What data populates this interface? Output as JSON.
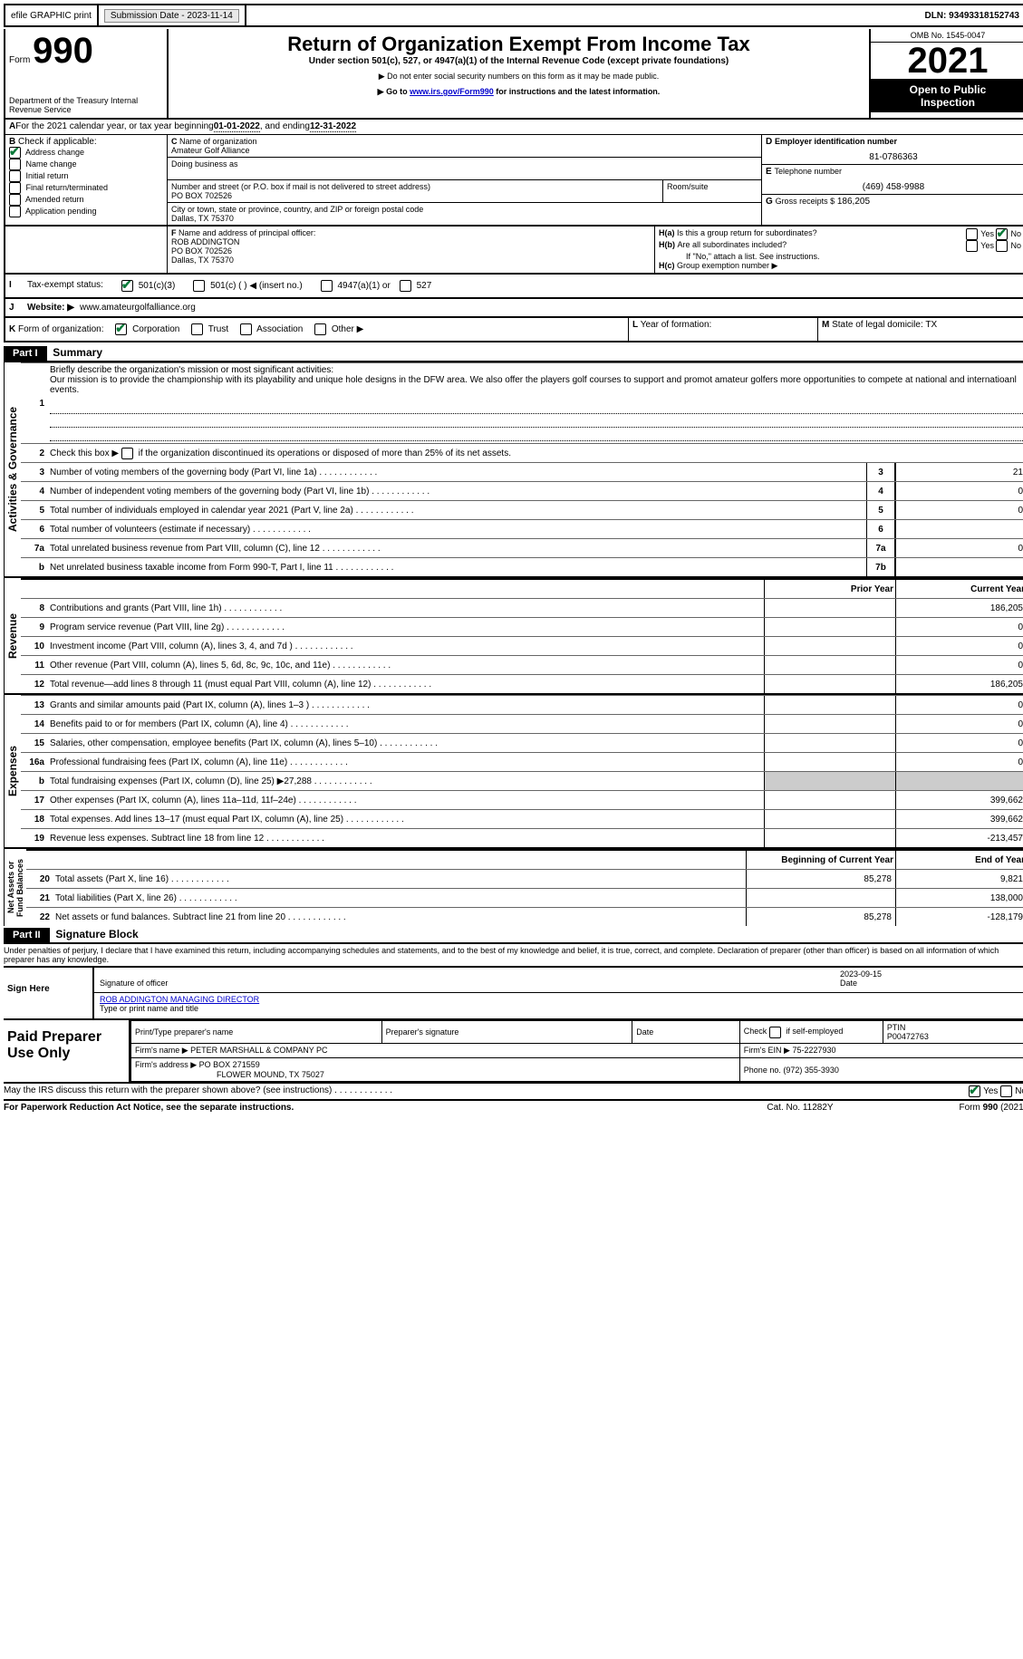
{
  "top": {
    "efile": "efile GRAPHIC print",
    "subdate_label": "Submission Date - 2023-11-14",
    "dln_label": "DLN: 93493318152743"
  },
  "header": {
    "form_label": "Form",
    "form_num": "990",
    "dept": "Department of the Treasury\nInternal Revenue Service",
    "title": "Return of Organization Exempt From Income Tax",
    "subtitle": "Under section 501(c), 527, or 4947(a)(1) of the Internal Revenue Code (except private foundations)",
    "note1": "Do not enter social security numbers on this form as it may be made public.",
    "note2_pre": "Go to ",
    "note2_link": "www.irs.gov/Form990",
    "note2_post": " for instructions and the latest information.",
    "omb": "OMB No. 1545-0047",
    "year": "2021",
    "inspect": "Open to Public\nInspection"
  },
  "periodA": {
    "label": "For the 2021 calendar year, or tax year beginning ",
    "begin": "01-01-2022",
    "mid": " , and ending ",
    "end": "12-31-2022"
  },
  "B": {
    "label": "Check if applicable:",
    "items": [
      "Address change",
      "Name change",
      "Initial return",
      "Final return/terminated",
      "Amended return",
      "Application pending"
    ],
    "checked": [
      true,
      false,
      false,
      false,
      false,
      false
    ]
  },
  "C": {
    "name_label": "Name of organization",
    "name": "Amateur Golf Alliance",
    "dba_label": "Doing business as",
    "addr_label": "Number and street (or P.O. box if mail is not delivered to street address)",
    "room_label": "Room/suite",
    "addr": "PO BOX 702526",
    "city_label": "City or town, state or province, country, and ZIP or foreign postal code",
    "city": "Dallas, TX  75370"
  },
  "D": {
    "label": "Employer identification number",
    "val": "81-0786363"
  },
  "E": {
    "label": "Telephone number",
    "val": "(469) 458-9988"
  },
  "G": {
    "label": "Gross receipts $",
    "val": "186,205"
  },
  "F": {
    "label": "Name and address of principal officer:",
    "name": "ROB ADDINGTON",
    "addr1": "PO BOX 702526",
    "addr2": "Dallas, TX  75370"
  },
  "H": {
    "a": "Is this a group return for subordinates?",
    "b": "Are all subordinates included?",
    "b_note": "If \"No,\" attach a list. See instructions.",
    "c": "Group exemption number ▶",
    "yes": "Yes",
    "no": "No"
  },
  "I": {
    "label": "Tax-exempt status:",
    "opts": [
      "501(c)(3)",
      "501(c) (  ) ◀ (insert no.)",
      "4947(a)(1) or",
      "527"
    ]
  },
  "J": {
    "label": "Website: ▶",
    "val": "www.amateurgolfalliance.org"
  },
  "K": {
    "label": "Form of organization:",
    "opts": [
      "Corporation",
      "Trust",
      "Association",
      "Other ▶"
    ]
  },
  "L": {
    "label": "Year of formation:"
  },
  "M": {
    "label": "State of legal domicile:",
    "val": "TX"
  },
  "part1": {
    "header": "Part I",
    "title": "Summary",
    "line1_label": "Briefly describe the organization's mission or most significant activities:",
    "line1_text": "Our mission is to provide the championship with its playability and unique hole designs in the DFW area. We also offer the players golf courses to support and promot amateur golfers more opportunities to compete at national and internatioanl events.",
    "line2": "Check this box ▶        if the organization discontinued its operations or disposed of more than 25% of its net assets.",
    "lines_ag": [
      {
        "n": "3",
        "t": "Number of voting members of the governing body (Part VI, line 1a)",
        "box": "3",
        "v": "21"
      },
      {
        "n": "4",
        "t": "Number of independent voting members of the governing body (Part VI, line 1b)",
        "box": "4",
        "v": "0"
      },
      {
        "n": "5",
        "t": "Total number of individuals employed in calendar year 2021 (Part V, line 2a)",
        "box": "5",
        "v": "0"
      },
      {
        "n": "6",
        "t": "Total number of volunteers (estimate if necessary)",
        "box": "6",
        "v": ""
      },
      {
        "n": "7a",
        "t": "Total unrelated business revenue from Part VIII, column (C), line 12",
        "box": "7a",
        "v": "0"
      },
      {
        "n": "b",
        "t": "Net unrelated business taxable income from Form 990-T, Part I, line 11",
        "box": "7b",
        "v": ""
      }
    ],
    "col_prior": "Prior Year",
    "col_curr": "Current Year",
    "rev": [
      {
        "n": "8",
        "t": "Contributions and grants (Part VIII, line 1h)",
        "p": "",
        "c": "186,205"
      },
      {
        "n": "9",
        "t": "Program service revenue (Part VIII, line 2g)",
        "p": "",
        "c": "0"
      },
      {
        "n": "10",
        "t": "Investment income (Part VIII, column (A), lines 3, 4, and 7d )",
        "p": "",
        "c": "0"
      },
      {
        "n": "11",
        "t": "Other revenue (Part VIII, column (A), lines 5, 6d, 8c, 9c, 10c, and 11e)",
        "p": "",
        "c": "0"
      },
      {
        "n": "12",
        "t": "Total revenue—add lines 8 through 11 (must equal Part VIII, column (A), line 12)",
        "p": "",
        "c": "186,205"
      }
    ],
    "exp": [
      {
        "n": "13",
        "t": "Grants and similar amounts paid (Part IX, column (A), lines 1–3 )",
        "p": "",
        "c": "0"
      },
      {
        "n": "14",
        "t": "Benefits paid to or for members (Part IX, column (A), line 4)",
        "p": "",
        "c": "0"
      },
      {
        "n": "15",
        "t": "Salaries, other compensation, employee benefits (Part IX, column (A), lines 5–10)",
        "p": "",
        "c": "0"
      },
      {
        "n": "16a",
        "t": "Professional fundraising fees (Part IX, column (A), line 11e)",
        "p": "",
        "c": "0"
      },
      {
        "n": "b",
        "t": "Total fundraising expenses (Part IX, column (D), line 25) ▶27,288",
        "p": "shade",
        "c": "shade"
      },
      {
        "n": "17",
        "t": "Other expenses (Part IX, column (A), lines 11a–11d, 11f–24e)",
        "p": "",
        "c": "399,662"
      },
      {
        "n": "18",
        "t": "Total expenses. Add lines 13–17 (must equal Part IX, column (A), line 25)",
        "p": "",
        "c": "399,662"
      },
      {
        "n": "19",
        "t": "Revenue less expenses. Subtract line 18 from line 12",
        "p": "",
        "c": "-213,457"
      }
    ],
    "col_begin": "Beginning of Current Year",
    "col_end": "End of Year",
    "na": [
      {
        "n": "20",
        "t": "Total assets (Part X, line 16)",
        "p": "85,278",
        "c": "9,821"
      },
      {
        "n": "21",
        "t": "Total liabilities (Part X, line 26)",
        "p": "",
        "c": "138,000"
      },
      {
        "n": "22",
        "t": "Net assets or fund balances. Subtract line 21 from line 20",
        "p": "85,278",
        "c": "-128,179"
      }
    ],
    "vlabels": {
      "ag": "Activities & Governance",
      "rev": "Revenue",
      "exp": "Expenses",
      "na": "Net Assets or\nFund Balances"
    }
  },
  "part2": {
    "header": "Part II",
    "title": "Signature Block",
    "decl": "Under penalties of perjury, I declare that I have examined this return, including accompanying schedules and statements, and to the best of my knowledge and belief, it is true, correct, and complete. Declaration of preparer (other than officer) is based on all information of which preparer has any knowledge.",
    "sign_here": "Sign\nHere",
    "sig_officer": "Signature of officer",
    "date_label": "Date",
    "date": "2023-09-15",
    "name_title": "ROB ADDINGTON  MANAGING DIRECTOR",
    "name_title_label": "Type or print name and title",
    "paid": "Paid\nPreparer\nUse Only",
    "prep_name_label": "Print/Type preparer's name",
    "prep_sig_label": "Preparer's signature",
    "check_self": "Check         if self-employed",
    "ptin_label": "PTIN",
    "ptin": "P00472763",
    "firm_name_label": "Firm's name    ▶",
    "firm_name": "PETER MARSHALL & COMPANY PC",
    "firm_ein_label": "Firm's EIN ▶",
    "firm_ein": "75-2227930",
    "firm_addr_label": "Firm's address ▶",
    "firm_addr1": "PO BOX 271559",
    "firm_addr2": "FLOWER MOUND, TX  75027",
    "phone_label": "Phone no.",
    "phone": "(972) 355-3930",
    "discuss": "May the IRS discuss this return with the preparer shown above? (see instructions)",
    "paperwork": "For Paperwork Reduction Act Notice, see the separate instructions.",
    "catno": "Cat. No. 11282Y",
    "formfoot": "Form 990 (2021)"
  },
  "colors": {
    "link": "#0000cc",
    "check": "#0a7a3a"
  }
}
